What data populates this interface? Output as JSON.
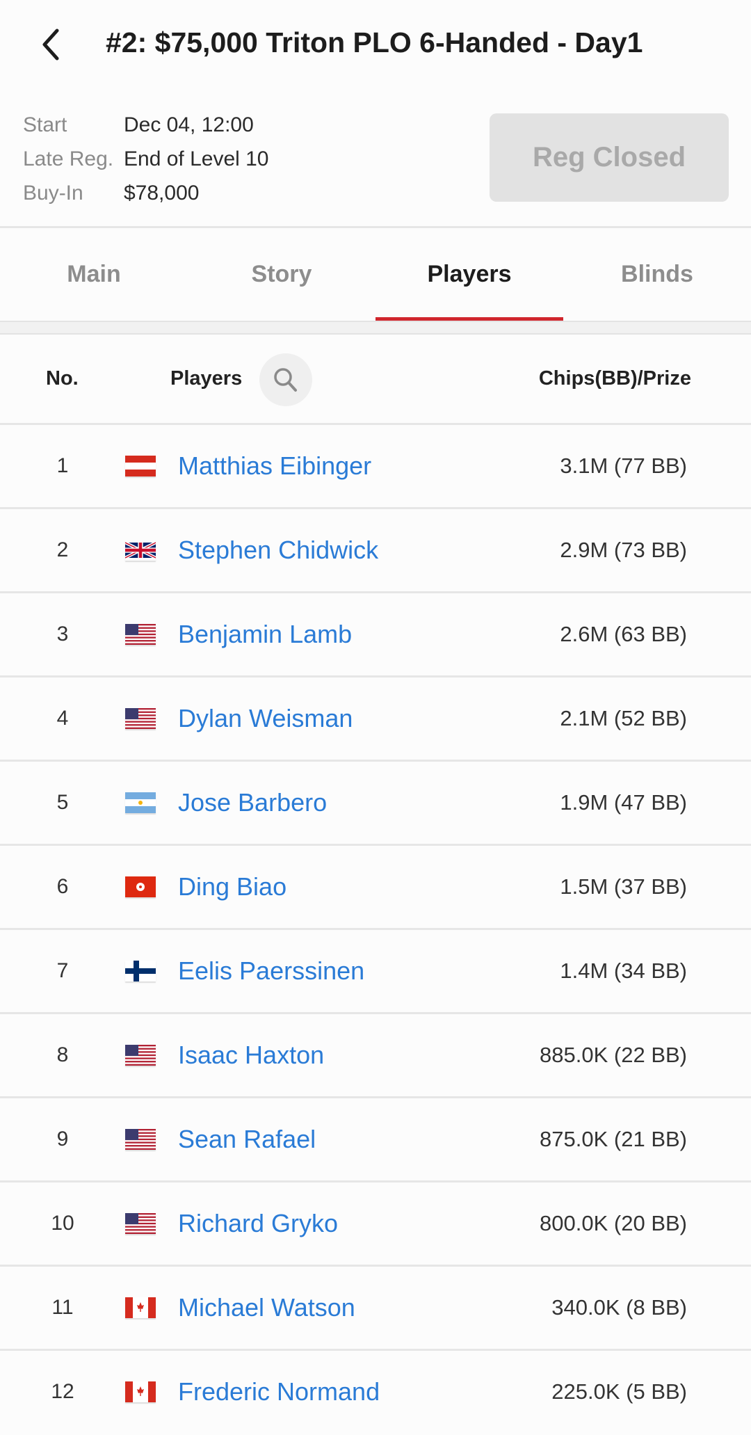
{
  "header": {
    "title": "#2: $75,000 Triton PLO 6-Handed - Day1",
    "back_icon": "chevron-left-icon"
  },
  "info": {
    "start_label": "Start",
    "start_value": "Dec 04, 12:00",
    "late_reg_label": "Late Reg.",
    "late_reg_value": "End of Level 10",
    "buyin_label": "Buy-In",
    "buyin_value": "$78,000"
  },
  "reg_button": {
    "label": "Reg Closed",
    "disabled": true
  },
  "tabs": [
    {
      "label": "Main",
      "active": false
    },
    {
      "label": "Story",
      "active": false
    },
    {
      "label": "Players",
      "active": true
    },
    {
      "label": "Blinds",
      "active": false
    }
  ],
  "accent_color": "#d0262d",
  "link_color": "#2a7bd6",
  "table": {
    "headers": {
      "no": "No.",
      "players": "Players",
      "chips": "Chips(BB)/Prize"
    },
    "search_icon": "search-icon",
    "rows": [
      {
        "no": "1",
        "flag": "austria",
        "name": "Matthias Eibinger",
        "chips": "3.1M (77 BB)"
      },
      {
        "no": "2",
        "flag": "uk",
        "name": "Stephen Chidwick",
        "chips": "2.9M (73 BB)"
      },
      {
        "no": "3",
        "flag": "usa",
        "name": "Benjamin Lamb",
        "chips": "2.6M (63 BB)"
      },
      {
        "no": "4",
        "flag": "usa",
        "name": "Dylan Weisman",
        "chips": "2.1M (52 BB)"
      },
      {
        "no": "5",
        "flag": "argentina",
        "name": "Jose Barbero",
        "chips": "1.9M (47 BB)"
      },
      {
        "no": "6",
        "flag": "hong-kong",
        "name": "Ding Biao",
        "chips": "1.5M (37 BB)"
      },
      {
        "no": "7",
        "flag": "finland",
        "name": "Eelis Paerssinen",
        "chips": "1.4M (34 BB)"
      },
      {
        "no": "8",
        "flag": "usa",
        "name": "Isaac Haxton",
        "chips": "885.0K (22 BB)"
      },
      {
        "no": "9",
        "flag": "usa",
        "name": "Sean Rafael",
        "chips": "875.0K (21 BB)"
      },
      {
        "no": "10",
        "flag": "usa",
        "name": "Richard Gryko",
        "chips": "800.0K (20 BB)"
      },
      {
        "no": "11",
        "flag": "canada",
        "name": "Michael Watson",
        "chips": "340.0K (8 BB)"
      },
      {
        "no": "12",
        "flag": "canada",
        "name": "Frederic Normand",
        "chips": "225.0K (5 BB)"
      }
    ]
  }
}
